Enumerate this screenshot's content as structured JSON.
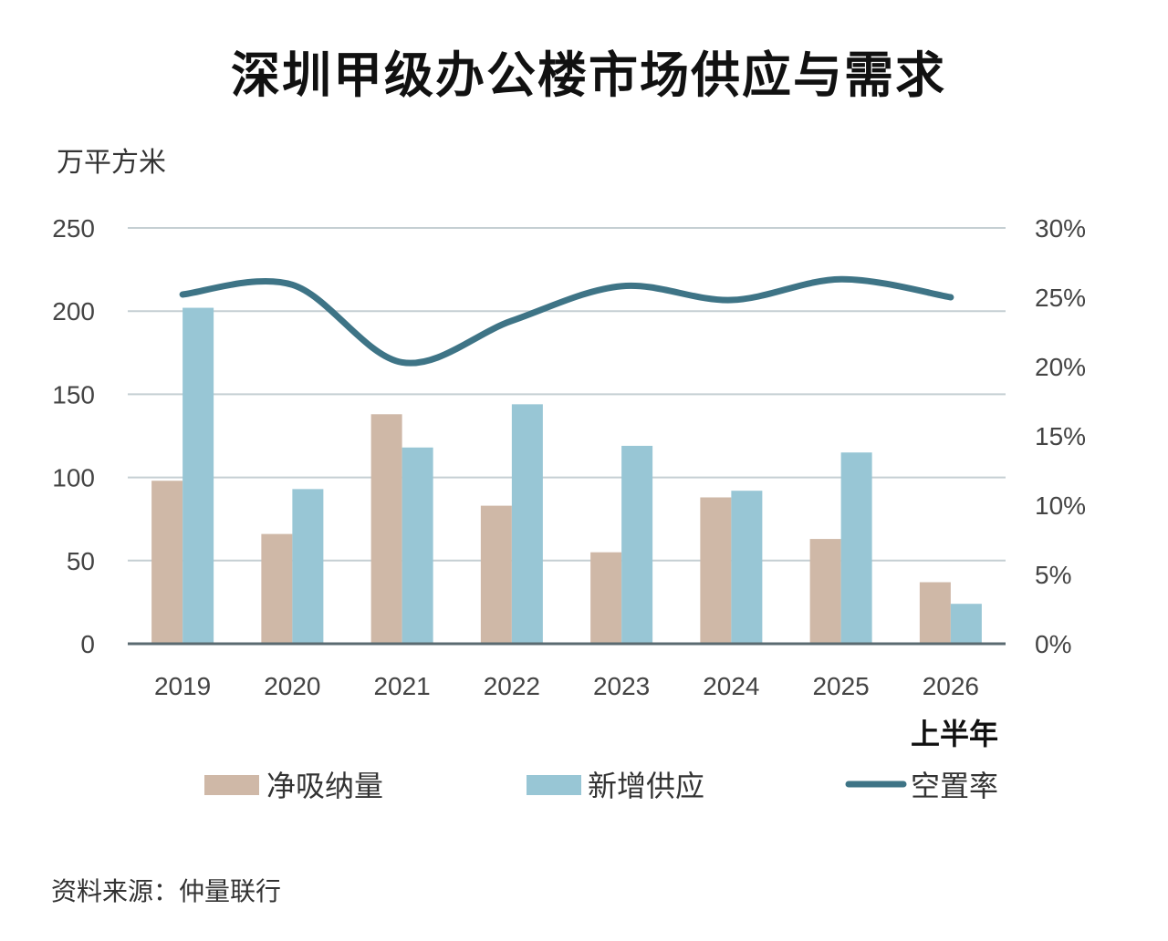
{
  "title": "深圳甲级办公楼市场供应与需求",
  "source": "资料来源：仲量联行",
  "colors": {
    "net_absorption": "#cfb8a7",
    "new_supply": "#98c6d5",
    "vacancy": "#3e7486",
    "grid": "#c5cfd3",
    "axis": "#5a6a70"
  },
  "chart_data": {
    "type": "bar",
    "title": "深圳甲级办公楼市场供应与需求",
    "ylabel": "万平方米",
    "y2label": "",
    "categories": [
      "2019",
      "2020",
      "2021",
      "2022",
      "2023",
      "2024",
      "2025",
      "2026"
    ],
    "category_note": "上半年",
    "ylim": [
      0,
      250
    ],
    "yticks": [
      0,
      50,
      100,
      150,
      200,
      250
    ],
    "y2lim": [
      0,
      30
    ],
    "y2ticks": [
      "0%",
      "5%",
      "10%",
      "15%",
      "20%",
      "25%",
      "30%"
    ],
    "grid": true,
    "legend_position": "bottom",
    "series": [
      {
        "name": "净吸纳量",
        "type": "bar",
        "axis": "left",
        "values": [
          98,
          66,
          138,
          83,
          55,
          88,
          63,
          37
        ]
      },
      {
        "name": "新增供应",
        "type": "bar",
        "axis": "left",
        "values": [
          202,
          93,
          118,
          144,
          119,
          92,
          115,
          24
        ]
      },
      {
        "name": "空置率",
        "type": "line",
        "axis": "right",
        "unit": "%",
        "values": [
          25.2,
          25.9,
          20.3,
          23.3,
          25.8,
          24.8,
          26.3,
          25.0
        ]
      }
    ]
  }
}
